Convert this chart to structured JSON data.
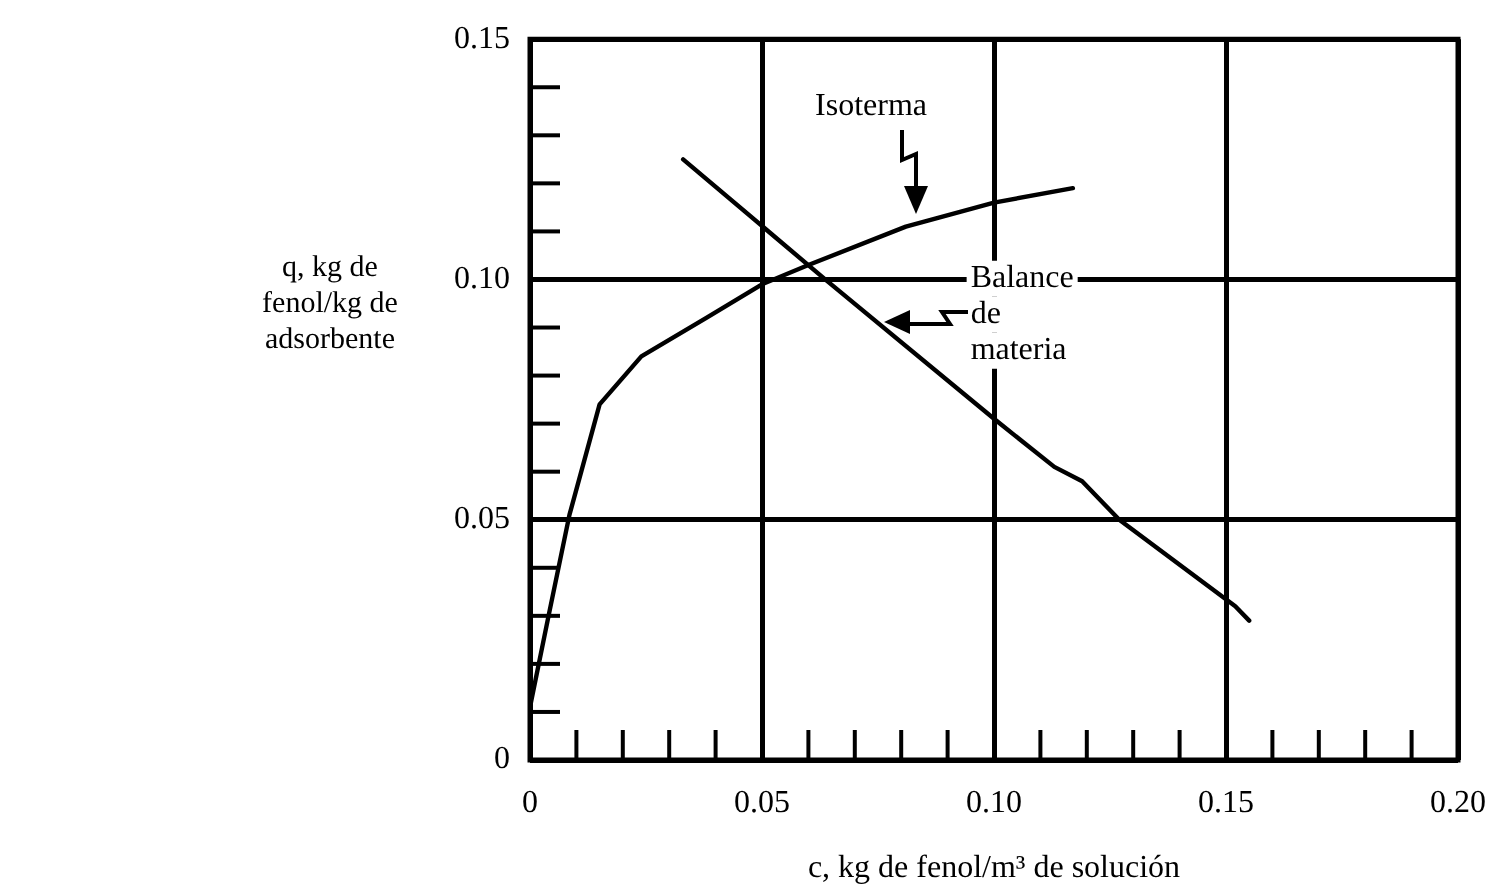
{
  "chart_data": {
    "type": "line",
    "xlabel": "c, kg de fenol/m³ de solución",
    "ylabel": "q, kg de fenol/kg de adsorbente",
    "xlim": [
      0,
      0.2
    ],
    "ylim": [
      0,
      0.15
    ],
    "xticks": [
      0,
      {
        "value": 0.01,
        "label": null
      },
      {
        "value": 0.02,
        "label": null
      },
      {
        "value": 0.03,
        "label": null
      },
      {
        "value": 0.04,
        "label": null
      },
      0.05,
      {
        "value": 0.06,
        "label": null
      },
      {
        "value": 0.07,
        "label": null
      },
      {
        "value": 0.08,
        "label": null
      },
      {
        "value": 0.09,
        "label": null
      },
      {
        "value": 0.1,
        "label": "0.10"
      },
      {
        "value": 0.11,
        "label": null
      },
      {
        "value": 0.12,
        "label": null
      },
      {
        "value": 0.13,
        "label": null
      },
      {
        "value": 0.14,
        "label": null
      },
      0.15,
      {
        "value": 0.16,
        "label": null
      },
      {
        "value": 0.17,
        "label": null
      },
      {
        "value": 0.18,
        "label": null
      },
      {
        "value": 0.19,
        "label": null
      },
      {
        "value": 0.2,
        "label": "0.20"
      }
    ],
    "yticks": [
      0,
      {
        "value": 0.01,
        "label": null
      },
      {
        "value": 0.02,
        "label": null
      },
      {
        "value": 0.03,
        "label": null
      },
      {
        "value": 0.04,
        "label": null
      },
      0.05,
      {
        "value": 0.06,
        "label": null
      },
      {
        "value": 0.07,
        "label": null
      },
      {
        "value": 0.08,
        "label": null
      },
      {
        "value": 0.09,
        "label": null
      },
      {
        "value": 0.1,
        "label": "0.10"
      },
      {
        "value": 0.11,
        "label": null
      },
      {
        "value": 0.12,
        "label": null
      },
      {
        "value": 0.13,
        "label": null
      },
      {
        "value": 0.14,
        "label": null
      },
      0.15
    ],
    "grid": true,
    "legend": false,
    "marker": "none",
    "line_style": "solid",
    "series": [
      {
        "color": "#000000",
        "x": [
          0,
          0.004,
          0.0085,
          0.015,
          0.024,
          0.038,
          0.05,
          0.06,
          0.081,
          0.1,
          0.117
        ],
        "values": [
          0.011,
          0.03,
          0.051,
          0.074,
          0.084,
          0.092,
          0.099,
          0.103,
          0.111,
          0.116,
          0.119
        ]
      },
      {
        "color": "#000000",
        "x": [
          0.033,
          0.064,
          0.1,
          0.113,
          0.119,
          0.127,
          0.152,
          0.155
        ],
        "values": [
          0.125,
          0.0997,
          0.071,
          0.061,
          0.058,
          0.05,
          0.032,
          0.029
        ]
      }
    ],
    "annotations": [
      {
        "text": "Isoterma",
        "x": 0.083,
        "y": 0.113
      },
      {
        "text": "Balance de materia",
        "x": 0.076,
        "y": 0.091
      }
    ]
  }
}
